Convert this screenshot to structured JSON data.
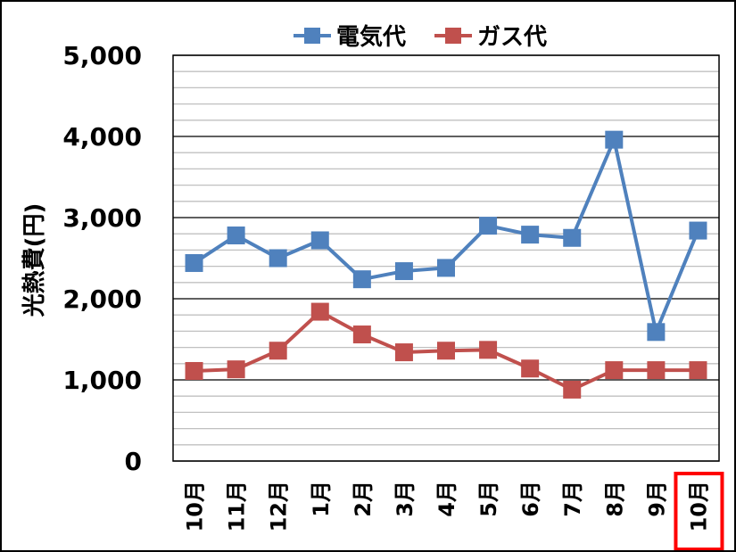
{
  "chart_data": {
    "type": "line",
    "title": "",
    "xlabel": "",
    "ylabel": "光熱費(円)",
    "ylim": [
      0,
      5000
    ],
    "yticks": [
      "0",
      "1,000",
      "2,000",
      "3,000",
      "4,000",
      "5,000"
    ],
    "ytick_values": [
      0,
      1000,
      2000,
      3000,
      4000,
      5000
    ],
    "minor_grid_step": 200,
    "grid": true,
    "legend_position": "top",
    "categories": [
      "10月",
      "11月",
      "12月",
      "1月",
      "2月",
      "3月",
      "4月",
      "5月",
      "6月",
      "7月",
      "8月",
      "9月",
      "10月"
    ],
    "highlighted_category_index": 12,
    "highlight_color": "#ff0000",
    "series": [
      {
        "name": "電気代",
        "color": "#4f81bd",
        "marker": "square",
        "values": [
          2440,
          2780,
          2500,
          2720,
          2240,
          2340,
          2380,
          2900,
          2790,
          2750,
          3960,
          1590,
          2840
        ]
      },
      {
        "name": "ガス代",
        "color": "#c0504d",
        "marker": "square",
        "values": [
          1110,
          1130,
          1360,
          1840,
          1560,
          1340,
          1360,
          1370,
          1140,
          880,
          1120,
          1120,
          1120
        ]
      }
    ]
  }
}
